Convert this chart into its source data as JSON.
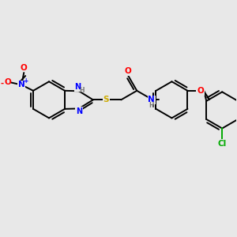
{
  "background_color": "#e8e8e8",
  "bond_color": "#000000",
  "bond_width": 1.4,
  "atom_colors": {
    "N": "#0000ff",
    "O": "#ff0000",
    "S": "#ccaa00",
    "Cl": "#00aa00",
    "C": "#000000",
    "H": "#777777"
  },
  "font_size": 7.5,
  "fig_width": 3.0,
  "fig_height": 3.0,
  "dpi": 100
}
